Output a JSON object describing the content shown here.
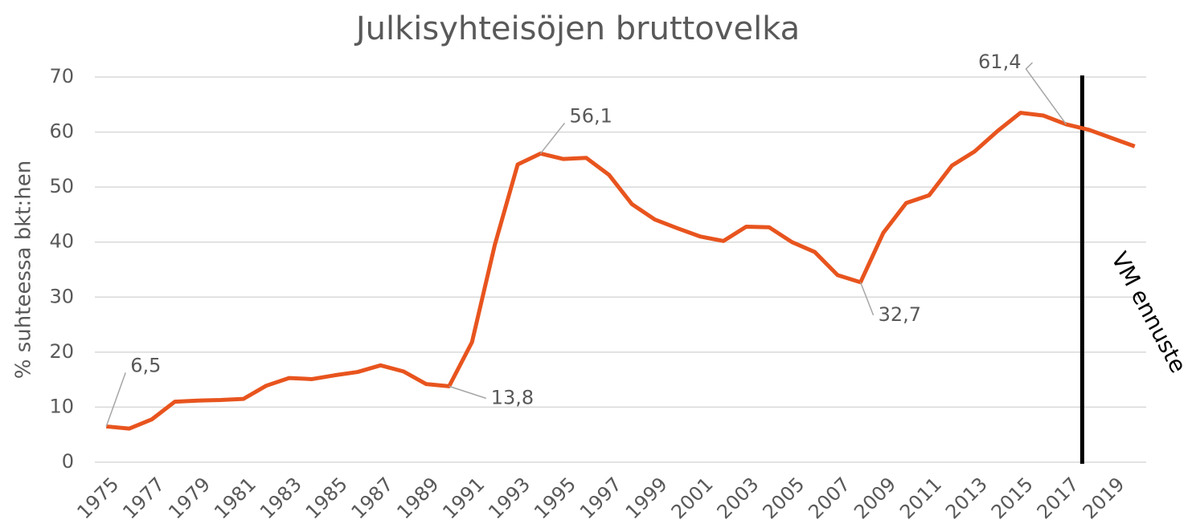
{
  "chart_data": {
    "type": "line",
    "title": "Julkisyhteisöjen bruttovelka",
    "y_label": "% suhteessa bkt:hen",
    "categories": [
      "1975",
      null,
      "1977",
      null,
      "1979",
      null,
      "1981",
      null,
      "1983",
      null,
      "1985",
      null,
      "1987",
      null,
      "1989",
      null,
      "1991",
      null,
      "1993",
      null,
      "1995",
      null,
      "1997",
      null,
      "1999",
      null,
      "2001",
      null,
      "2003",
      null,
      "2005",
      null,
      "2007",
      null,
      "2009",
      null,
      "2011",
      null,
      "2013",
      null,
      "2015",
      null,
      "2017",
      null,
      "2019",
      null
    ],
    "series": [
      {
        "name": "Bruttovelka",
        "color": "#e8541e",
        "values": [
          6.5,
          6.1,
          7.8,
          11.0,
          11.2,
          11.3,
          11.5,
          13.9,
          15.3,
          15.1,
          15.8,
          16.4,
          17.6,
          16.5,
          14.2,
          13.8,
          21.8,
          39.5,
          54.1,
          56.1,
          55.1,
          55.3,
          52.2,
          46.9,
          44.1,
          42.5,
          41.0,
          40.2,
          42.8,
          42.7,
          40.0,
          38.2,
          34.0,
          32.7,
          41.7,
          47.1,
          48.5,
          53.9,
          56.5,
          60.2,
          63.5,
          63.0,
          61.4,
          60.4,
          58.9,
          57.4
        ],
        "value_labels": [
          "6,5",
          null,
          null,
          null,
          null,
          null,
          null,
          null,
          null,
          null,
          null,
          null,
          null,
          null,
          null,
          "13,8",
          null,
          null,
          null,
          "56,1",
          null,
          null,
          null,
          null,
          null,
          null,
          null,
          null,
          null,
          null,
          null,
          null,
          null,
          "32,7",
          null,
          null,
          null,
          null,
          null,
          null,
          null,
          null,
          "61,4",
          null,
          null,
          null
        ]
      }
    ],
    "ylim": [
      0,
      70
    ],
    "yticks": [
      0,
      10,
      20,
      30,
      40,
      50,
      60,
      70
    ],
    "grid": true,
    "forecast_line": {
      "x": 2017.7,
      "label": "VM ennuste"
    }
  }
}
